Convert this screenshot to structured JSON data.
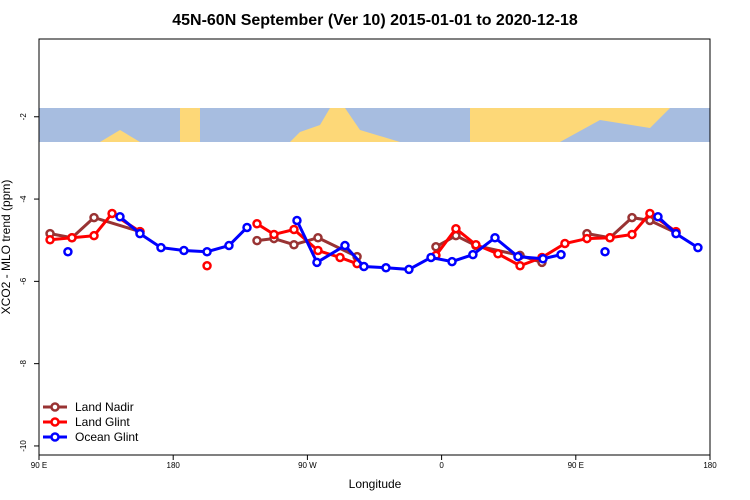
{
  "chart_data": {
    "type": "line",
    "title": "45N-60N September (Ver 10)   2015-01-01 to 2020-12-18",
    "xlabel": "Longitude",
    "ylabel": "XCO2 - MLO trend (ppm)",
    "xlim": [
      90,
      540
    ],
    "ylim": [
      -10.22,
      -0.11
    ],
    "xticks": [
      {
        "value": 90,
        "label": "90 E"
      },
      {
        "value": 180,
        "label": "180"
      },
      {
        "value": 270,
        "label": "90 W"
      },
      {
        "value": 360,
        "label": "0"
      },
      {
        "value": 450,
        "label": "90 E"
      },
      {
        "value": 540,
        "label": "180"
      }
    ],
    "yticks": [
      -2,
      -4,
      -6,
      -8,
      -10
    ],
    "legend": "bottom-left",
    "series": [
      {
        "name": "Land Nadir",
        "color": "#993333",
        "x": [
          97.4,
          112.1,
          126.9,
          157.7,
          null,
          236.2,
          247.6,
          261.0,
          277.1,
          303.3,
          null,
          356.2,
          369.6,
          383.0,
          412.6,
          427.3,
          null,
          457.5,
          472.9,
          487.7,
          499.7,
          517.2
        ],
        "values": [
          -4.84,
          -4.94,
          -4.45,
          -4.79,
          null,
          -5.01,
          -4.96,
          -5.11,
          -4.94,
          -5.4,
          null,
          -5.16,
          -4.89,
          -5.13,
          -5.37,
          -5.54,
          null,
          -4.84,
          -4.94,
          -4.45,
          -4.52,
          -4.82
        ]
      },
      {
        "name": "Land Glint",
        "color": "#ff0000",
        "x": [
          97.4,
          112.1,
          126.9,
          139.0,
          157.7,
          null,
          202.7,
          null,
          236.2,
          247.6,
          261.0,
          277.1,
          291.9,
          303.3,
          null,
          356.2,
          369.6,
          383.0,
          397.8,
          412.6,
          427.3,
          442.7,
          457.5,
          472.9,
          487.7,
          499.7,
          517.2
        ],
        "values": [
          -4.99,
          -4.94,
          -4.89,
          -4.35,
          -4.79,
          null,
          -5.62,
          null,
          -4.6,
          -4.86,
          -4.74,
          -5.25,
          -5.42,
          -5.57,
          null,
          -5.37,
          -4.72,
          -5.11,
          -5.33,
          -5.62,
          -5.42,
          -5.08,
          -4.96,
          -4.94,
          -4.86,
          -4.35,
          -4.79
        ]
      },
      {
        "name": "Ocean Glint",
        "color": "#0000ff",
        "x": [
          109.4,
          null,
          144.3,
          157.7,
          171.8,
          187.2,
          202.7,
          217.4,
          229.5,
          null,
          263.0,
          276.4,
          295.2,
          307.9,
          322.7,
          338.1,
          352.9,
          367.0,
          381.0,
          395.8,
          411.2,
          428.0,
          440.1,
          null,
          469.6,
          null,
          505.1,
          517.2,
          531.9
        ],
        "values": [
          -5.28,
          null,
          -4.43,
          -4.84,
          -5.18,
          -5.25,
          -5.28,
          -5.13,
          -4.69,
          null,
          -4.52,
          -5.54,
          -5.13,
          -5.64,
          -5.67,
          -5.71,
          -5.42,
          -5.52,
          -5.35,
          -4.94,
          -5.4,
          -5.45,
          -5.35,
          null,
          -5.28,
          null,
          -4.43,
          -4.84,
          -5.18
        ]
      }
    ]
  }
}
